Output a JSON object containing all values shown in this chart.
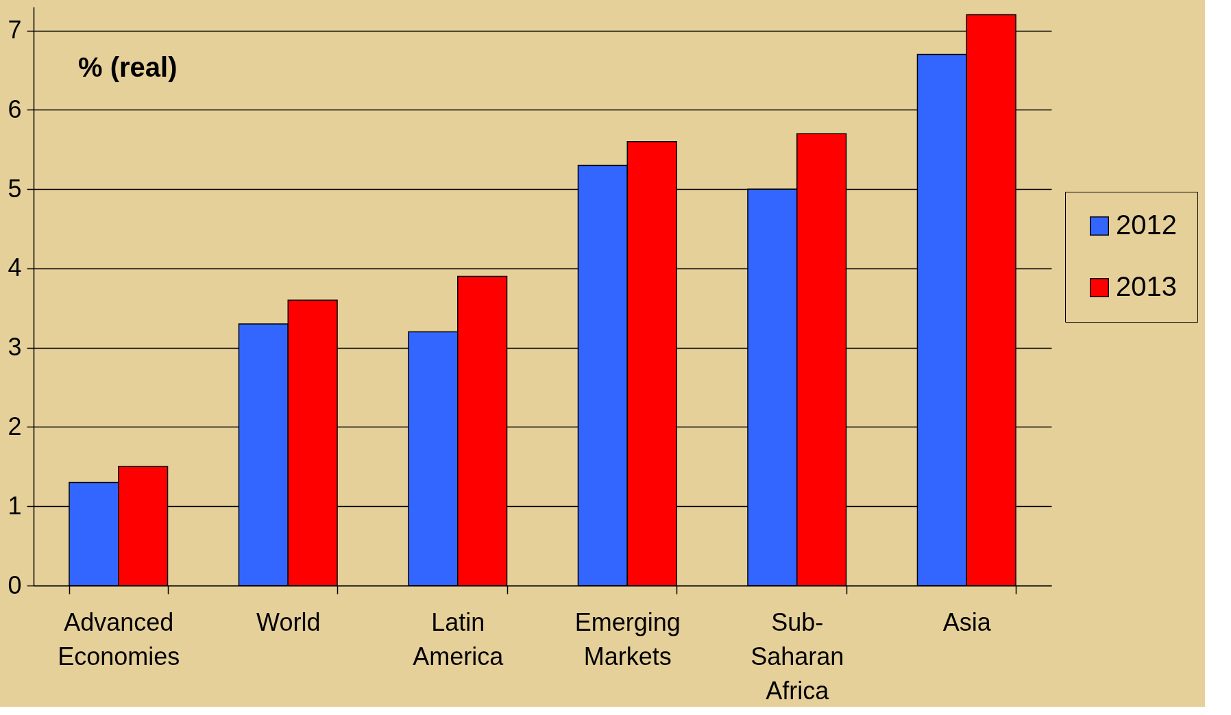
{
  "chart_data": {
    "type": "bar",
    "categories": [
      "Advanced Economies",
      "World",
      "Latin America",
      "Emerging Markets",
      "Sub-Saharan Africa",
      "Asia"
    ],
    "series": [
      {
        "name": "2012",
        "color": "#3366ff",
        "values": [
          1.3,
          3.3,
          3.2,
          5.3,
          5.0,
          6.7
        ]
      },
      {
        "name": "2013",
        "color": "#ff0000",
        "values": [
          1.5,
          3.6,
          3.9,
          5.6,
          5.7,
          7.2
        ]
      }
    ],
    "ylim": [
      0,
      7.3
    ],
    "yticks": [
      0,
      1,
      2,
      3,
      4,
      5,
      6,
      7
    ],
    "grid": "y",
    "legend": "right",
    "annotations": [
      "% (real)"
    ]
  }
}
